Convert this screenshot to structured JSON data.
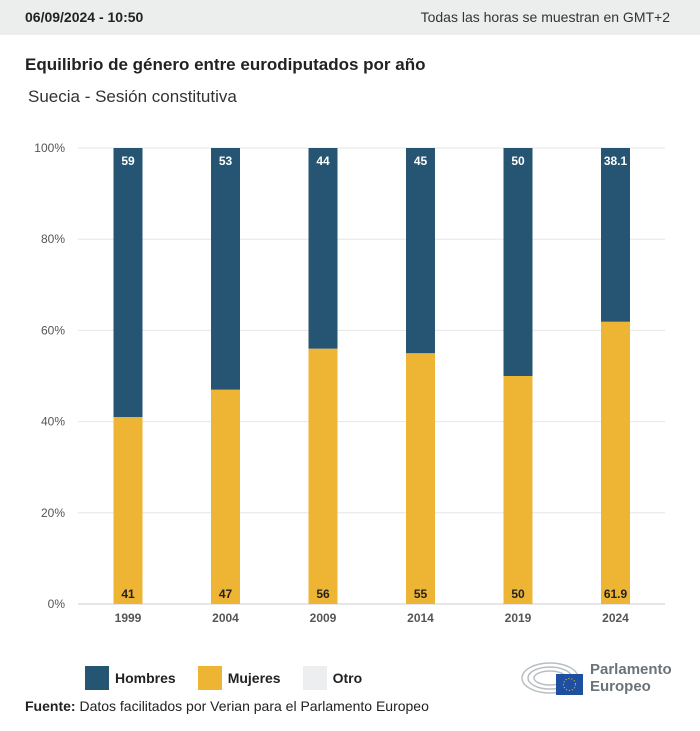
{
  "header": {
    "timestamp": "06/09/2024 - 10:50",
    "timezone_note": "Todas las horas se muestran en GMT+2"
  },
  "chart_data": {
    "type": "bar",
    "stacked": true,
    "title": "Equilibrio de género entre eurodiputados por año",
    "subtitle": "Suecia - Sesión constitutiva",
    "categories": [
      "1999",
      "2004",
      "2009",
      "2014",
      "2019",
      "2024"
    ],
    "series": [
      {
        "name": "Mujeres",
        "color": "#eeb534",
        "values": [
          41,
          47,
          56,
          55,
          50,
          61.9
        ]
      },
      {
        "name": "Hombres",
        "color": "#255572",
        "values": [
          59,
          53,
          44,
          45,
          50,
          38.1
        ]
      },
      {
        "name": "Otro",
        "color": "#eceeef",
        "values": [
          0,
          0,
          0,
          0,
          0,
          0
        ]
      }
    ],
    "yticks": [
      "0%",
      "20%",
      "40%",
      "60%",
      "80%",
      "100%"
    ],
    "ylim": [
      0,
      100
    ],
    "grid": true,
    "legend": "bottom-left"
  },
  "legend": {
    "items": [
      {
        "label": "Hombres",
        "color": "#255572"
      },
      {
        "label": "Mujeres",
        "color": "#eeb534"
      },
      {
        "label": "Otro",
        "color": "#eceeef"
      }
    ]
  },
  "source": {
    "label": "Fuente:",
    "text": "Datos facilitados por Verian para el Parlamento Europeo"
  },
  "logo": {
    "line1": "Parlamento",
    "line2": "Europeo"
  }
}
